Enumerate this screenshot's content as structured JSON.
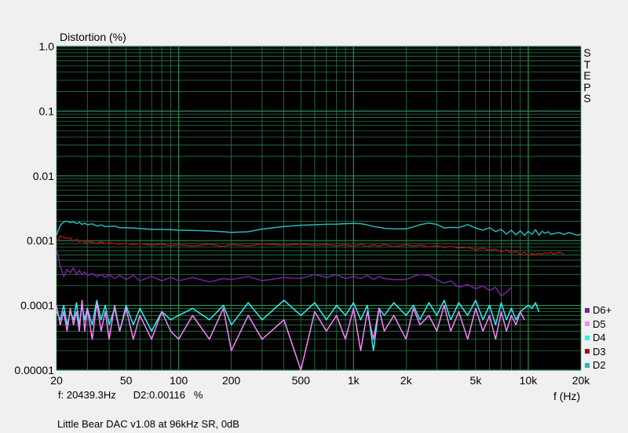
{
  "chart_data": {
    "type": "line",
    "title": "",
    "ylabel": "Distortion (%)",
    "xlabel": "f (Hz)",
    "x_scale": "log",
    "y_scale": "log",
    "xlim": [
      20,
      20000
    ],
    "ylim": [
      1e-05,
      1.0
    ],
    "grid": true,
    "legend_position": "right",
    "background_color": "#000000",
    "grid_color": "#2e8b57",
    "x_ticks": [
      "20",
      "50",
      "100",
      "200",
      "500",
      "1k",
      "2k",
      "5k",
      "10k",
      "20k"
    ],
    "y_ticks": [
      "1.0",
      "0.1",
      "0.01",
      "0.001",
      "0.0001",
      "0.00001"
    ],
    "series": [
      {
        "name": "D2",
        "color": "#2ab7b7",
        "x": [
          20,
          21,
          22,
          23,
          24,
          25,
          26,
          27,
          28,
          29,
          30,
          32,
          34,
          36,
          38,
          40,
          43,
          46,
          50,
          55,
          60,
          70,
          80,
          90,
          100,
          120,
          150,
          180,
          200,
          250,
          300,
          400,
          500,
          600,
          700,
          800,
          900,
          1000,
          1100,
          1200,
          1300,
          1400,
          1500,
          1700,
          2000,
          2200,
          2400,
          2700,
          3000,
          3300,
          3600,
          4000,
          4500,
          5000,
          5500,
          6000,
          6500,
          7000,
          7500,
          8000,
          8500,
          9000,
          9500,
          10000,
          10500,
          11000,
          11500,
          12000,
          12500,
          13000,
          13500,
          14000,
          15000,
          16000,
          17000,
          18000,
          19000,
          20000
        ],
        "y": [
          0.00122,
          0.00172,
          0.00195,
          0.002,
          0.0019,
          0.00196,
          0.00183,
          0.00192,
          0.00178,
          0.00186,
          0.00176,
          0.00182,
          0.00168,
          0.00175,
          0.00165,
          0.00166,
          0.00168,
          0.00158,
          0.00158,
          0.00156,
          0.00154,
          0.00149,
          0.00149,
          0.00148,
          0.00145,
          0.00144,
          0.00141,
          0.00137,
          0.00134,
          0.00137,
          0.00151,
          0.00165,
          0.00173,
          0.00176,
          0.00179,
          0.0018,
          0.00183,
          0.00185,
          0.00183,
          0.00175,
          0.00165,
          0.00161,
          0.00155,
          0.00152,
          0.00152,
          0.00163,
          0.00176,
          0.00187,
          0.00178,
          0.00157,
          0.0016,
          0.00159,
          0.00177,
          0.00157,
          0.00145,
          0.00158,
          0.00138,
          0.00149,
          0.00126,
          0.00145,
          0.00123,
          0.00142,
          0.00121,
          0.00139,
          0.00125,
          0.00148,
          0.00121,
          0.00139,
          0.0013,
          0.00137,
          0.00124,
          0.00129,
          0.00133,
          0.00125,
          0.00133,
          0.00128,
          0.00121,
          0.00125
        ]
      },
      {
        "name": "D3",
        "color": "#a01414",
        "x": [
          20,
          21,
          22,
          23,
          24,
          25,
          26,
          27,
          28,
          29,
          30,
          32,
          34,
          36,
          38,
          40,
          43,
          46,
          50,
          55,
          60,
          70,
          80,
          90,
          100,
          120,
          150,
          180,
          200,
          250,
          300,
          400,
          500,
          600,
          700,
          800,
          900,
          1000,
          1100,
          1200,
          1300,
          1400,
          1500,
          1700,
          2000,
          2200,
          2400,
          2700,
          3000,
          3300,
          3600,
          4000,
          4500,
          5000,
          5500,
          6000,
          6500,
          7000,
          7500,
          8000,
          8500,
          9000,
          9500,
          10000,
          10500,
          11000,
          11500,
          12000,
          12500,
          13000,
          13500,
          14000,
          15000,
          16000
        ],
        "y": [
          0.00095,
          0.00118,
          0.00112,
          0.00108,
          0.0011,
          0.00098,
          0.00105,
          0.00096,
          0.001,
          0.00092,
          0.00097,
          0.00094,
          0.00091,
          0.00096,
          0.0009,
          0.00093,
          0.0009,
          0.00088,
          0.00091,
          0.00087,
          0.0009,
          0.00085,
          0.00088,
          0.00083,
          0.00087,
          0.00082,
          0.00088,
          0.00081,
          0.00087,
          0.00083,
          0.00089,
          0.00085,
          0.00088,
          0.00084,
          0.00087,
          0.00083,
          0.00086,
          0.00082,
          0.00087,
          0.00081,
          0.00086,
          0.00082,
          0.00087,
          0.00081,
          0.00086,
          0.00082,
          0.00085,
          0.0008,
          0.00084,
          0.00078,
          0.00082,
          0.00077,
          0.00079,
          0.00073,
          0.00077,
          0.00071,
          0.00074,
          0.00067,
          0.00072,
          0.00064,
          0.00069,
          0.00061,
          0.00066,
          0.00058,
          0.00064,
          0.00061,
          0.00064,
          0.00062,
          0.00065,
          0.00063,
          0.00066,
          0.00062,
          0.00066,
          0.00062
        ]
      },
      {
        "name": "D6+",
        "color": "#7b1fa2",
        "x": [
          20,
          21,
          22,
          23,
          24,
          25,
          26,
          27,
          28,
          29,
          30,
          32,
          34,
          36,
          38,
          40,
          43,
          46,
          50,
          55,
          60,
          70,
          80,
          90,
          100,
          120,
          150,
          180,
          200,
          250,
          300,
          400,
          500,
          600,
          700,
          800,
          900,
          1000,
          1100,
          1200,
          1300,
          1400,
          1500,
          1700,
          2000,
          2200,
          2400,
          2700,
          3000,
          3300,
          3600,
          4000,
          4500,
          5000,
          5500,
          6000,
          6500,
          7000,
          7500,
          8000
        ],
        "y": [
          0.00075,
          0.0004,
          0.00028,
          0.00036,
          0.00032,
          0.00038,
          0.0003,
          0.00035,
          0.0003,
          0.00033,
          0.00029,
          0.00031,
          0.00028,
          0.0003,
          0.00027,
          0.0003,
          0.00026,
          0.00029,
          0.00025,
          0.00029,
          0.00024,
          0.00028,
          0.00024,
          0.00027,
          0.00024,
          0.00027,
          0.00023,
          0.00026,
          0.00025,
          0.00028,
          0.00024,
          0.00027,
          0.00026,
          0.0003,
          0.00027,
          0.0003,
          0.00026,
          0.00028,
          0.00026,
          0.00029,
          0.00025,
          0.00028,
          0.00026,
          0.00025,
          0.00025,
          0.00028,
          0.0003,
          0.00029,
          0.00025,
          0.00022,
          0.00024,
          0.00019,
          0.00021,
          0.00018,
          0.0002,
          0.00017,
          0.00019,
          0.00014,
          0.00016,
          0.00019
        ]
      },
      {
        "name": "D4",
        "color": "#2ef0f0",
        "x": [
          20,
          21,
          22,
          23,
          24,
          25,
          26,
          27,
          28,
          29,
          30,
          32,
          34,
          36,
          38,
          40,
          43,
          46,
          50,
          55,
          60,
          70,
          80,
          90,
          100,
          120,
          150,
          180,
          200,
          250,
          300,
          400,
          500,
          600,
          700,
          800,
          900,
          1000,
          1100,
          1200,
          1300,
          1400,
          1500,
          1700,
          2000,
          2200,
          2400,
          2700,
          3000,
          3300,
          3600,
          4000,
          4500,
          5000,
          5500,
          6000,
          6500,
          7000,
          7500,
          8000,
          8500,
          9000,
          9500,
          10000,
          10500,
          11000,
          11500
        ],
        "y": [
          8e-05,
          6e-05,
          0.0001,
          5e-05,
          8e-05,
          6e-05,
          0.00011,
          5e-05,
          0.0001,
          6e-05,
          9e-05,
          5e-05,
          0.00012,
          6e-05,
          0.0001,
          5e-05,
          9e-05,
          4e-05,
          0.0001,
          5e-05,
          9e-05,
          4e-05,
          8e-05,
          6e-05,
          7e-05,
          9e-05,
          6e-05,
          0.0001,
          5e-05,
          0.00011,
          6e-05,
          0.00012,
          7e-05,
          0.00011,
          6e-05,
          0.0001,
          7e-05,
          0.00011,
          6e-05,
          0.0001,
          2e-05,
          9e-05,
          7e-05,
          0.00011,
          7e-05,
          0.0001,
          6e-05,
          0.00011,
          7e-05,
          0.00012,
          6e-05,
          0.00011,
          7e-05,
          0.00012,
          6e-05,
          0.0001,
          5e-05,
          0.00011,
          6e-05,
          9e-05,
          6e-05,
          8e-05,
          9e-05,
          0.0001,
          9e-05,
          0.00011,
          8e-05
        ]
      },
      {
        "name": "D5",
        "color": "#ff80ff",
        "x": [
          20,
          21,
          22,
          23,
          24,
          25,
          26,
          27,
          28,
          29,
          30,
          32,
          34,
          36,
          38,
          40,
          43,
          46,
          50,
          55,
          60,
          70,
          80,
          90,
          100,
          120,
          150,
          180,
          200,
          250,
          300,
          400,
          500,
          600,
          700,
          800,
          900,
          1000,
          1100,
          1200,
          1300,
          1400,
          1500,
          1700,
          2000,
          2200,
          2400,
          2700,
          3000,
          3300,
          3600,
          4000,
          4500,
          5000,
          5500,
          6000,
          6500,
          7000,
          7500,
          8000,
          8500,
          9000,
          9500
        ],
        "y": [
          0.0001,
          5e-05,
          8e-05,
          4e-05,
          9e-05,
          5e-05,
          8e-05,
          4e-05,
          0.00012,
          4e-05,
          9e-05,
          3e-05,
          0.00011,
          4e-05,
          8e-05,
          3e-05,
          0.0001,
          4e-05,
          9e-05,
          3e-05,
          7e-05,
          3e-05,
          8e-05,
          4e-05,
          3e-05,
          7e-05,
          3e-05,
          9e-05,
          2e-05,
          7e-05,
          3e-05,
          6e-05,
          1e-05,
          8e-05,
          4e-05,
          7e-05,
          3e-05,
          9e-05,
          2e-05,
          8e-05,
          3e-05,
          9e-05,
          4e-05,
          7e-05,
          3e-05,
          9e-05,
          5e-05,
          7e-05,
          4e-05,
          0.0001,
          4e-05,
          8e-05,
          3e-05,
          9e-05,
          4e-05,
          7e-05,
          3e-05,
          8e-05,
          4e-05,
          7e-05,
          5e-05,
          8e-05,
          6e-05
        ]
      }
    ]
  },
  "steps_menu": [
    "S",
    "T",
    "E",
    "P",
    "S"
  ],
  "legend": [
    {
      "name": "D6+",
      "color": "#7b1fa2"
    },
    {
      "name": "D5",
      "color": "#ff80ff"
    },
    {
      "name": "D4",
      "color": "#2ef0f0"
    },
    {
      "name": "D3",
      "color": "#a01414"
    },
    {
      "name": "D2",
      "color": "#2ab7b7"
    }
  ],
  "status": {
    "cursor_freq": "f: 20439.3Hz",
    "cursor_value": "D2:0.00116",
    "unit": "%"
  },
  "caption": "Little Bear DAC v1.08 at 96kHz SR, 0dB"
}
